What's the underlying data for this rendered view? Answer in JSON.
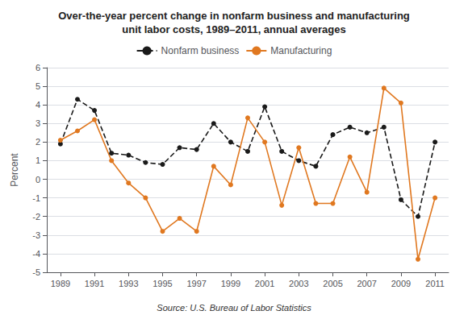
{
  "chart_data": {
    "type": "line",
    "title": "Over-the-year percent change in nonfarm business and manufacturing\nunit labor costs, 1989–2011, annual averages",
    "annotations": [
      "Source: U.S. Bureau of Labor Statistics"
    ],
    "y_label": "Percent",
    "x": [
      1989,
      1990,
      1991,
      1992,
      1993,
      1994,
      1995,
      1996,
      1997,
      1998,
      1999,
      2000,
      2001,
      2002,
      2003,
      2004,
      2005,
      2006,
      2007,
      2008,
      2009,
      2010,
      2011
    ],
    "series": [
      {
        "name": "Nonfarm business",
        "color": "#1a1a1a",
        "line_style": "dashed",
        "marker": "circle",
        "values": [
          1.9,
          4.3,
          3.7,
          1.4,
          1.3,
          0.9,
          0.8,
          1.7,
          1.6,
          3.0,
          2.0,
          1.5,
          3.9,
          1.5,
          1.0,
          0.7,
          2.4,
          2.8,
          2.5,
          2.8,
          -1.1,
          -2.0,
          2.0
        ]
      },
      {
        "name": "Manufacturing",
        "color": "#e07820",
        "line_style": "solid",
        "marker": "circle",
        "values": [
          2.1,
          2.6,
          3.2,
          1.0,
          -0.2,
          -1.0,
          -2.8,
          -2.1,
          -2.8,
          0.7,
          -0.3,
          3.3,
          2.0,
          -1.4,
          1.7,
          -1.3,
          -1.3,
          1.2,
          -0.7,
          4.9,
          4.1,
          -4.3,
          -1.0
        ]
      }
    ],
    "xlim": [
      1988.2,
      2011.8
    ],
    "xticks": [
      1989,
      1991,
      1993,
      1995,
      1997,
      1999,
      2001,
      2003,
      2005,
      2007,
      2009,
      2011
    ],
    "ylim": [
      -5,
      6
    ],
    "yticks": [
      -5,
      -4,
      -3,
      -2,
      -1,
      0,
      1,
      2,
      3,
      4,
      5,
      6
    ],
    "grid": true,
    "legend": "top"
  }
}
